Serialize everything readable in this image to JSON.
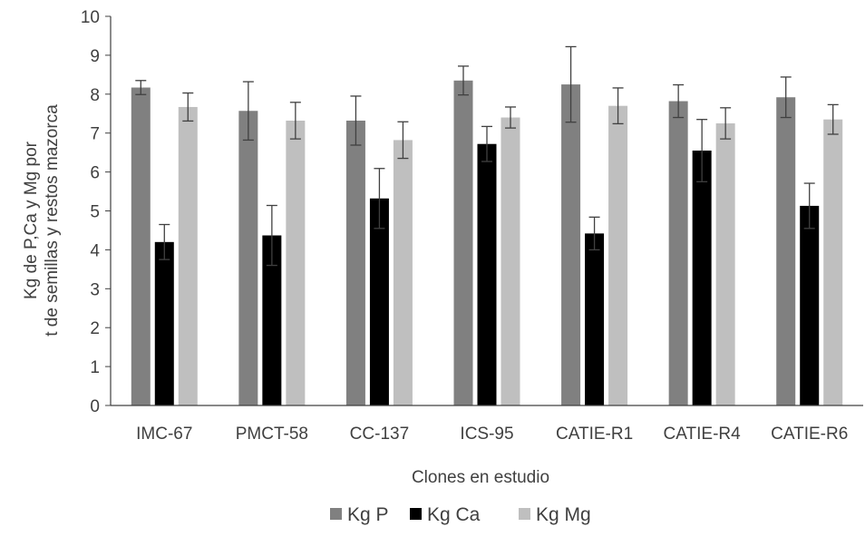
{
  "chart_data": {
    "type": "bar",
    "title": "",
    "xlabel": "Clones  en estudio",
    "ylabel_lines": [
      "Kg de P,Ca y Mg  por",
      "t  de semillas y restos mazorca"
    ],
    "ylim": [
      0,
      10
    ],
    "yticks": [
      "0",
      "1",
      "2",
      "3",
      "4",
      "5",
      "6",
      "7",
      "8",
      "9",
      "10"
    ],
    "categories": [
      "IMC-67",
      "PMCT-58",
      "CC-137",
      "ICS-95",
      "CATIE-R1",
      "CATIE-R4",
      "CATIE-R6"
    ],
    "grid": false,
    "legend_position": "bottom",
    "series": [
      {
        "name": "Kg P",
        "color": "#808080",
        "values": [
          8.17,
          7.57,
          7.32,
          8.35,
          8.25,
          7.82,
          7.92
        ],
        "errors": [
          0.18,
          0.75,
          0.63,
          0.37,
          0.97,
          0.42,
          0.52
        ]
      },
      {
        "name": "Kg Ca",
        "color": "#000000",
        "values": [
          4.2,
          4.37,
          5.32,
          6.72,
          4.42,
          6.55,
          5.13
        ],
        "errors": [
          0.45,
          0.77,
          0.77,
          0.45,
          0.42,
          0.8,
          0.58
        ]
      },
      {
        "name": "Kg Mg",
        "color": "#bfbfbf",
        "values": [
          7.67,
          7.32,
          6.82,
          7.4,
          7.7,
          7.25,
          7.35
        ],
        "errors": [
          0.36,
          0.47,
          0.47,
          0.27,
          0.46,
          0.4,
          0.38
        ]
      }
    ]
  }
}
